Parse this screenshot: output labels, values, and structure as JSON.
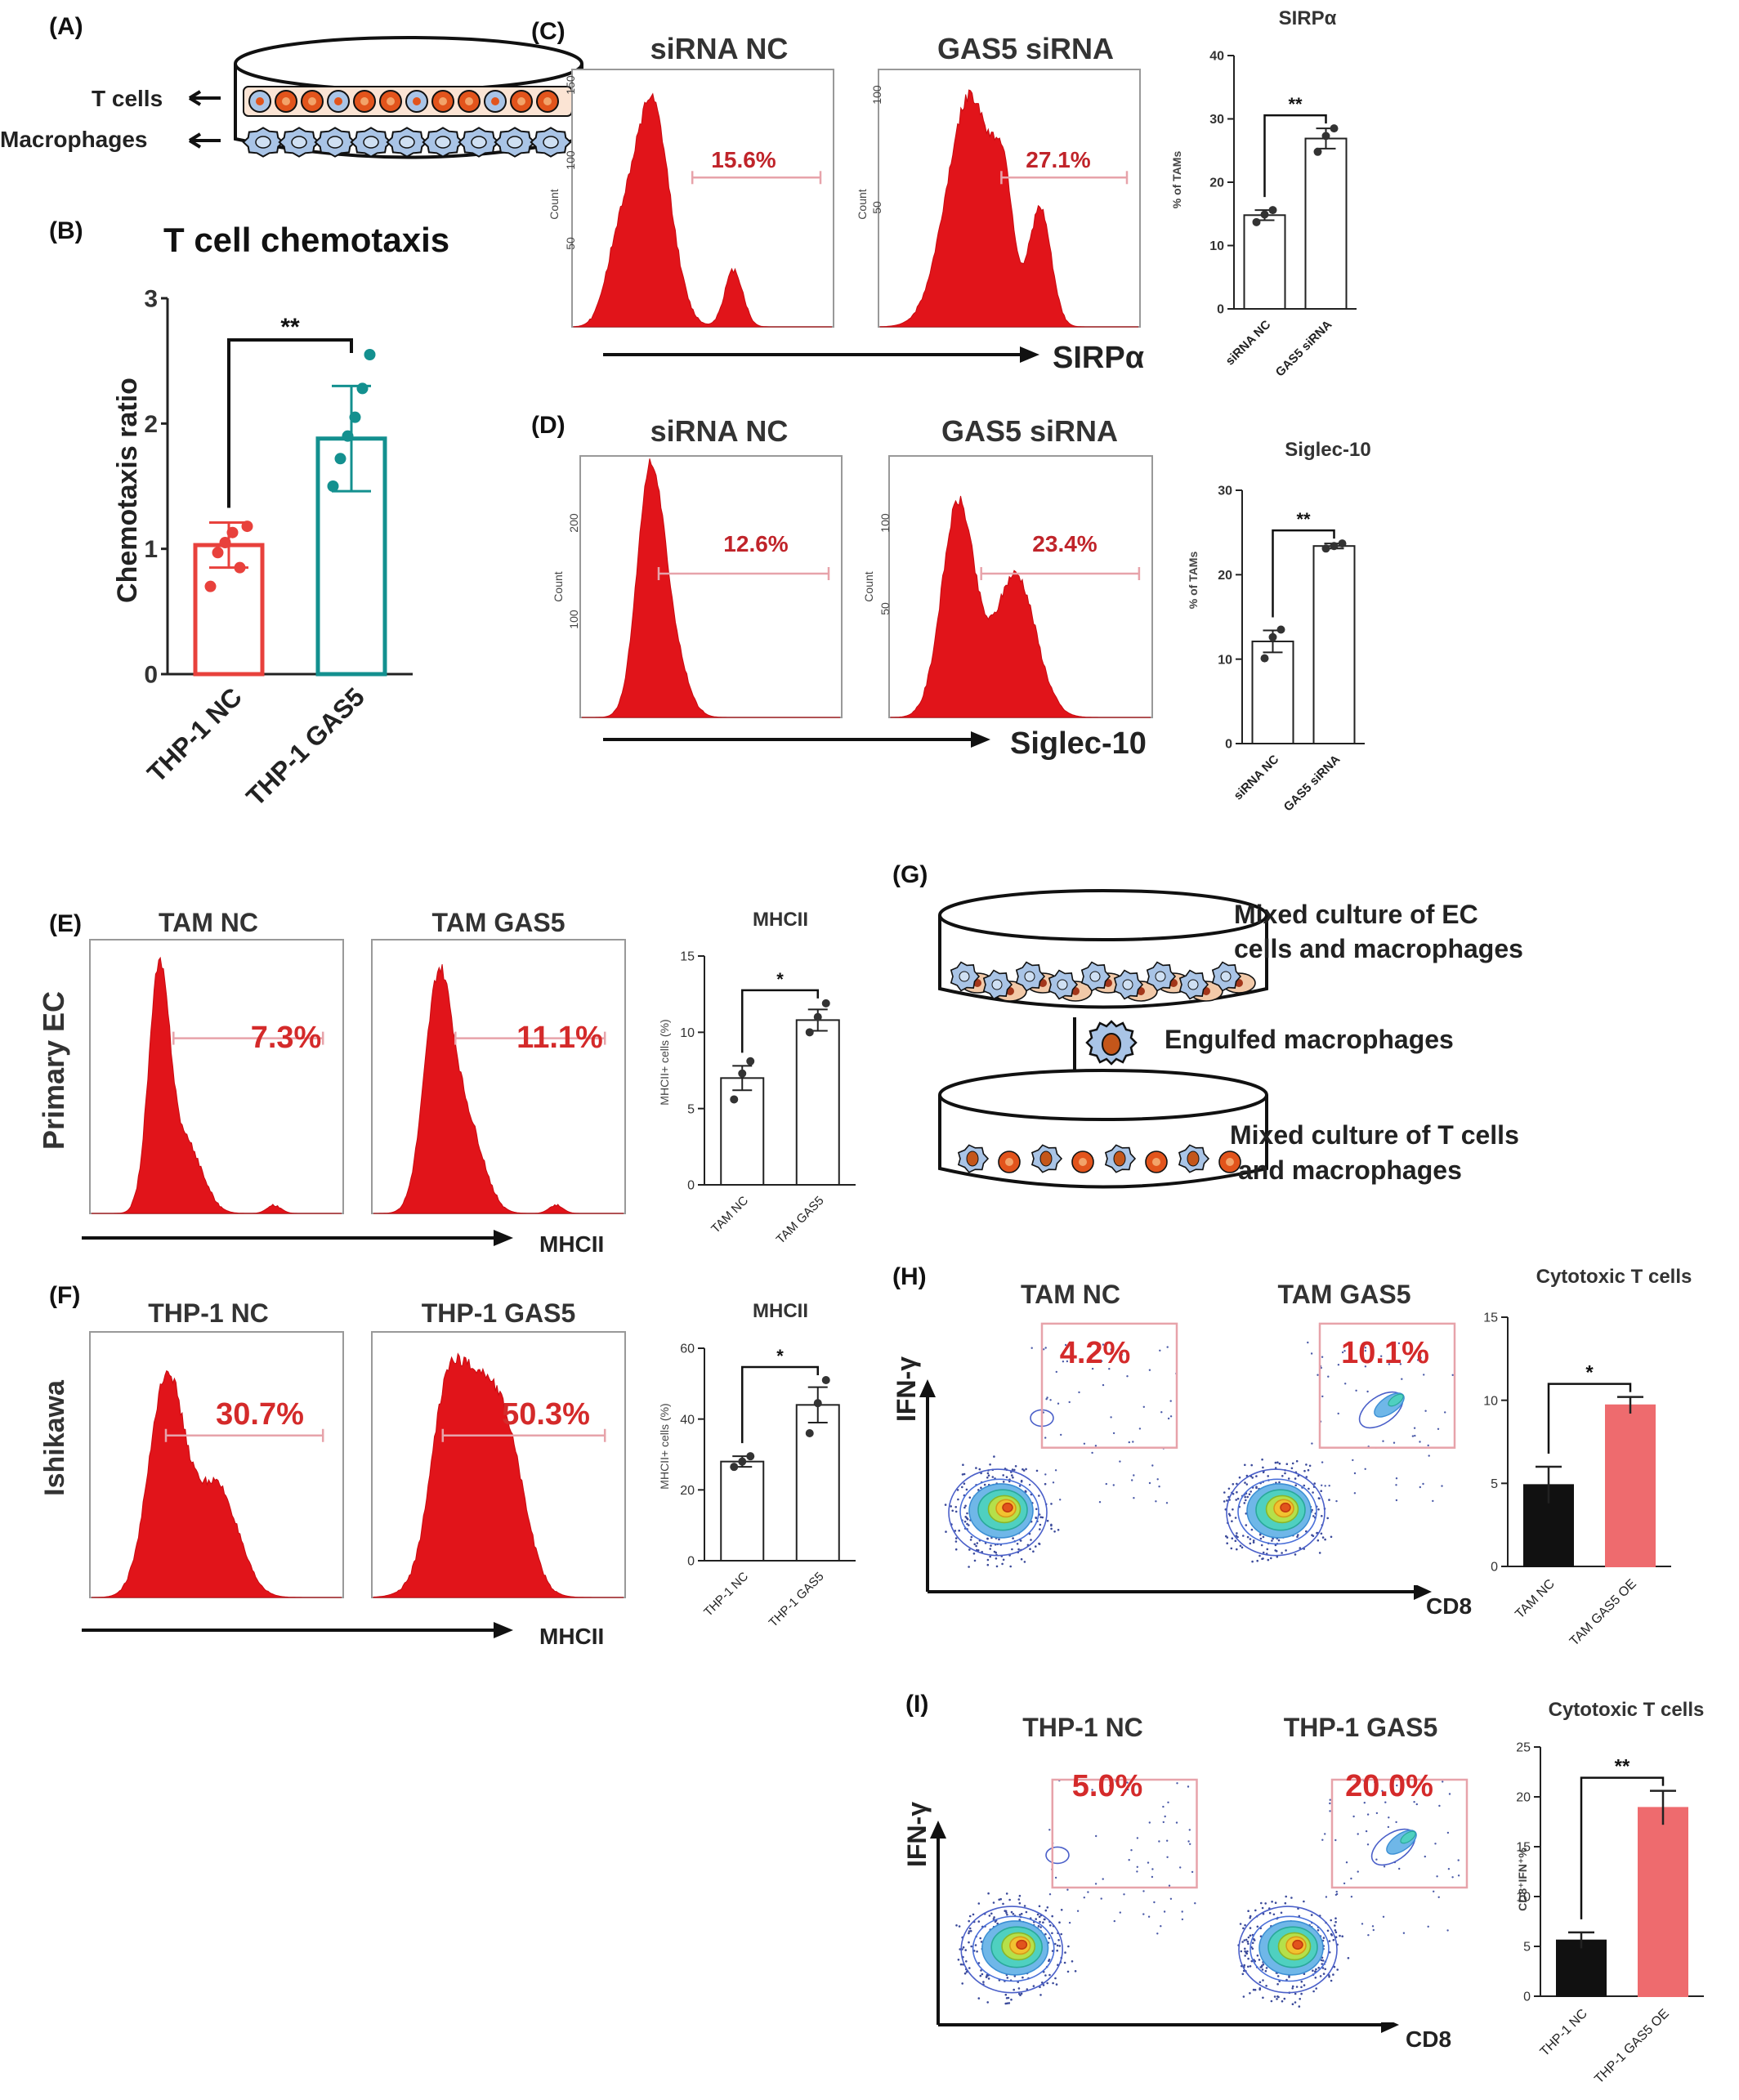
{
  "panels": {
    "A": {
      "label": "(A)",
      "arrow_labels": [
        "T cells",
        "Macrophages"
      ]
    },
    "B": {
      "label": "(B)"
    },
    "C": {
      "label": "(C)",
      "hist_titles": [
        "siRNA NC",
        "GAS5 siRNA"
      ],
      "percents": [
        "15.6%",
        "27.1%"
      ],
      "axis": "SIRPα",
      "hist_ticks": [
        [
          "150",
          "100",
          "50"
        ],
        [
          "100",
          "50"
        ]
      ],
      "hist_ylabel": "Count"
    },
    "D": {
      "label": "(D)",
      "hist_titles": [
        "siRNA NC",
        "GAS5 siRNA"
      ],
      "percents": [
        "12.6%",
        "23.4%"
      ],
      "axis": "Siglec-10",
      "hist_ticks": [
        [
          "200",
          "100"
        ],
        [
          "100",
          "50"
        ]
      ],
      "hist_ylabel": "Count"
    },
    "E": {
      "label": "(E)",
      "row_label": "Primary EC",
      "hist_titles": [
        "TAM NC",
        "TAM GAS5"
      ],
      "percents": [
        "7.3%",
        "11.1%"
      ],
      "axis": "MHCII"
    },
    "F": {
      "label": "(F)",
      "row_label": "Ishikawa",
      "hist_titles": [
        "THP-1 NC",
        "THP-1 GAS5"
      ],
      "percents": [
        "30.7%",
        "50.3%"
      ],
      "axis": "MHCII"
    },
    "G": {
      "label": "(G)",
      "text1a": "Mixed culture of EC",
      "text1b": "cells and macrophages",
      "text2": "Engulfed macrophages",
      "text3a": "Mixed culture of T cells",
      "text3b": "and macrophages"
    },
    "H": {
      "label": "(H)",
      "plot_titles": [
        "TAM NC",
        "TAM GAS5"
      ],
      "percents": [
        "4.2%",
        "10.1%"
      ],
      "xaxis": "CD8",
      "yaxis": "IFN-γ"
    },
    "I": {
      "label": "(I)",
      "plot_titles": [
        "THP-1 NC",
        "THP-1 GAS5"
      ],
      "percents": [
        "5.0%",
        "20.0%"
      ],
      "xaxis": "CD8",
      "yaxis": "IFN-γ"
    }
  },
  "colors": {
    "hist": "#e1141a",
    "nc_red": "#e8413c",
    "gas5_teal": "#13908f",
    "gate": "#e7a3aa",
    "pct": "#c0242a",
    "oe_pink": "#ee6b6e",
    "black_bar": "#111111"
  },
  "chart_data": [
    {
      "id": "B",
      "type": "bar",
      "title": "T cell chemotaxis",
      "ylabel": "Chemotaxis ratio",
      "categories": [
        "THP-1 NC",
        "THP-1 GAS5"
      ],
      "values": [
        1.03,
        1.88
      ],
      "errors": [
        0.18,
        0.42
      ],
      "points": [
        [
          0.7,
          0.97,
          1.05,
          1.13,
          0.85,
          1.18
        ],
        [
          1.5,
          1.72,
          1.9,
          2.05,
          2.28,
          2.55
        ]
      ],
      "ylim": [
        0,
        3
      ],
      "yticks": [
        "0",
        "1",
        "2",
        "3"
      ],
      "significance": "**"
    },
    {
      "id": "C",
      "type": "bar",
      "title": "SIRPα",
      "ylabel": "% of TAMs",
      "categories": [
        "siRNA NC",
        "GAS5 siRNA"
      ],
      "values": [
        14.8,
        26.9
      ],
      "errors": [
        0.8,
        1.6
      ],
      "points": [
        [
          13.7,
          14.9,
          15.6
        ],
        [
          24.8,
          27.3,
          28.5
        ]
      ],
      "ylim": [
        0,
        40
      ],
      "yticks": [
        "0",
        "10",
        "20",
        "30",
        "40"
      ],
      "significance": "**"
    },
    {
      "id": "D",
      "type": "bar",
      "title": "Siglec-10",
      "ylabel": "% of TAMs",
      "categories": [
        "siRNA NC",
        "GAS5 siRNA"
      ],
      "values": [
        12.1,
        23.4
      ],
      "errors": [
        1.3,
        0.3
      ],
      "points": [
        [
          10.1,
          12.6,
          13.5
        ],
        [
          23.1,
          23.4,
          23.7
        ]
      ],
      "ylim": [
        0,
        30
      ],
      "yticks": [
        "0",
        "10",
        "20",
        "30"
      ],
      "significance": "**"
    },
    {
      "id": "E",
      "type": "bar",
      "title": "MHCII",
      "ylabel": "MHCII+ cells (%)",
      "categories": [
        "TAM NC",
        "TAM GAS5"
      ],
      "values": [
        7.0,
        10.8
      ],
      "errors": [
        0.8,
        0.7
      ],
      "points": [
        [
          5.6,
          7.3,
          8.1
        ],
        [
          10.0,
          11.0,
          11.9
        ]
      ],
      "ylim": [
        0,
        15
      ],
      "yticks": [
        "0",
        "5",
        "10",
        "15"
      ],
      "significance": "*"
    },
    {
      "id": "F",
      "type": "bar",
      "title": "MHCII",
      "ylabel": "MHCII+ cells (%)",
      "categories": [
        "THP-1 NC",
        "THP-1 GAS5"
      ],
      "values": [
        28.0,
        44.0
      ],
      "errors": [
        1.5,
        5.0
      ],
      "points": [
        [
          26.5,
          28.0,
          29.5
        ],
        [
          36.0,
          44.5,
          51.0
        ]
      ],
      "ylim": [
        0,
        60
      ],
      "yticks": [
        "0",
        "20",
        "40",
        "60"
      ],
      "significance": "*"
    },
    {
      "id": "H",
      "type": "bar",
      "title": "Cytotoxic T cells",
      "categories": [
        "TAM NC",
        "TAM GAS5 OE"
      ],
      "values": [
        4.9,
        9.7
      ],
      "errors": [
        1.1,
        0.5
      ],
      "ylim": [
        0,
        15
      ],
      "yticks": [
        "0",
        "5",
        "10",
        "15"
      ],
      "significance": "*"
    },
    {
      "id": "I",
      "type": "bar",
      "title": "Cytotoxic T cells",
      "ylabel": "CD8⁺IFN⁺%",
      "categories": [
        "THP-1 NC",
        "THP-1 GAS5 OE"
      ],
      "values": [
        5.6,
        18.9
      ],
      "errors": [
        0.8,
        1.7
      ],
      "ylim": [
        0,
        25
      ],
      "yticks": [
        "0",
        "5",
        "10",
        "15",
        "20",
        "25"
      ],
      "significance": "**"
    }
  ]
}
